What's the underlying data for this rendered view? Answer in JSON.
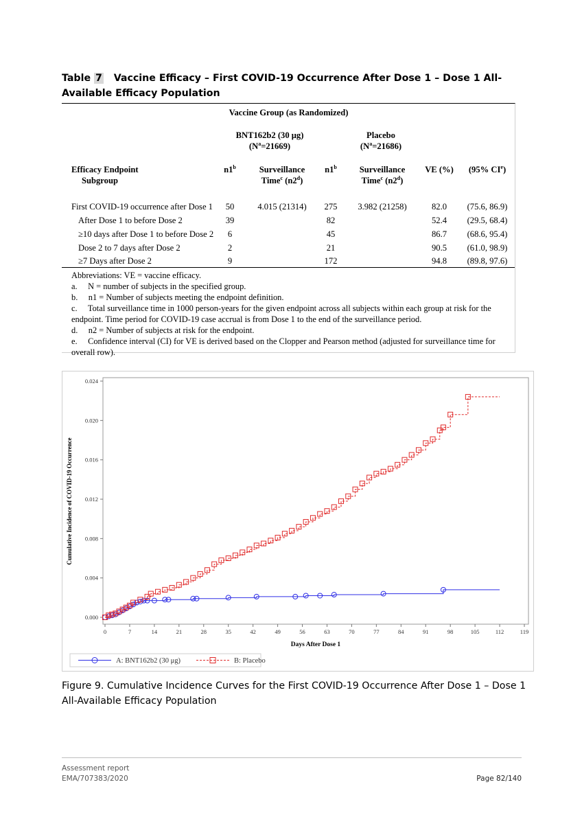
{
  "table": {
    "title_prefix": "Table ",
    "title_number": "7",
    "title_rest": "   Vaccine Efficacy – First COVID-19 Occurrence After Dose 1 – Dose 1 All- Available Efficacy Population",
    "group_header": "Vaccine Group (as Randomized)",
    "bnt_name": "BNT162b2 (30 μg)",
    "bnt_n_pre": "(N",
    "bnt_n_sup": "a",
    "bnt_n_post": "=21669)",
    "placebo_name": "Placebo",
    "placebo_n_pre": "(N",
    "placebo_n_sup": "a",
    "placebo_n_post": "=21686)",
    "col_endpoint_1": "Efficacy Endpoint",
    "col_endpoint_2": "Subgroup",
    "col_n1": "n1",
    "col_n1_sup": "b",
    "col_st_1": "Surveillance",
    "col_st_2_pre": "Time",
    "col_st_2_sup1": "c",
    "col_st_2_mid": " (n2",
    "col_st_2_sup2": "d",
    "col_st_2_post": ")",
    "col_ve": "VE (%)",
    "col_ci_pre": "(95% CI",
    "col_ci_sup": "e",
    "col_ci_post": ")",
    "rows": [
      {
        "label": "First COVID-19 occurrence after Dose 1",
        "n1_bnt": "50",
        "st_bnt": "4.015 (21314)",
        "n1_pl": "275",
        "st_pl": "3.982 (21258)",
        "ve": "82.0",
        "ci": "(75.6, 86.9)"
      },
      {
        "label": "After Dose 1 to before Dose 2",
        "n1_bnt": "39",
        "st_bnt": "",
        "n1_pl": "82",
        "st_pl": "",
        "ve": "52.4",
        "ci": "(29.5, 68.4)"
      },
      {
        "label": "≥10 days after Dose 1 to before Dose 2",
        "n1_bnt": "6",
        "st_bnt": "",
        "n1_pl": "45",
        "st_pl": "",
        "ve": "86.7",
        "ci": "(68.6, 95.4)"
      },
      {
        "label": "Dose 2 to 7 days after Dose 2",
        "n1_bnt": "2",
        "st_bnt": "",
        "n1_pl": "21",
        "st_pl": "",
        "ve": "90.5",
        "ci": "(61.0, 98.9)"
      },
      {
        "label": "≥7 Days after Dose 2",
        "n1_bnt": "9",
        "st_bnt": "",
        "n1_pl": "172",
        "st_pl": "",
        "ve": "94.8",
        "ci": "(89.8, 97.6)"
      }
    ],
    "footnotes": [
      "Abbreviations: VE = vaccine efficacy.",
      "a.     N = number of subjects in the specified group.",
      "b.     n1 = Number of subjects meeting the endpoint definition.",
      "c.     Total surveillance time in 1000 person-years for the given endpoint across all subjects within each group at risk for the endpoint. Time period for COVID-19 case accrual is from Dose 1 to the end of the surveillance period.",
      "d.     n2 = Number of subjects at risk for the endpoint.",
      "e.     Confidence interval (CI) for VE is derived based on the Clopper and Pearson method (adjusted for surveillance time for overall row)."
    ]
  },
  "chart_data": {
    "type": "line",
    "xlabel": "Days After Dose 1",
    "ylabel": "Cumulative Incidence of COVID-19 Occurrence",
    "xlim": [
      0,
      119
    ],
    "ylim": [
      0,
      0.024
    ],
    "x_ticks": [
      "0",
      "7",
      "14",
      "21",
      "28",
      "35",
      "42",
      "49",
      "56",
      "63",
      "70",
      "77",
      "84",
      "91",
      "98",
      "105",
      "112",
      "119"
    ],
    "y_ticks": [
      "0.000",
      "0.004",
      "0.008",
      "0.012",
      "0.016",
      "0.020",
      "0.024"
    ],
    "legend_position": "bottom-left",
    "series": [
      {
        "name": "A: BNT162b2 (30 μg)",
        "color": "#2e2ee6",
        "line": "solid",
        "marker": "circle",
        "points": [
          [
            0,
            0
          ],
          [
            1,
            0.0001
          ],
          [
            2,
            0.0002
          ],
          [
            3,
            0.0003
          ],
          [
            4,
            0.0005
          ],
          [
            5,
            0.0007
          ],
          [
            6,
            0.0009
          ],
          [
            7,
            0.0011
          ],
          [
            8,
            0.0013
          ],
          [
            9,
            0.0015
          ],
          [
            10,
            0.0016
          ],
          [
            11,
            0.0017
          ],
          [
            12,
            0.0017
          ],
          [
            14,
            0.0017
          ],
          [
            17,
            0.0018
          ],
          [
            18,
            0.0018
          ],
          [
            25,
            0.0019
          ],
          [
            26,
            0.0019
          ],
          [
            35,
            0.002
          ],
          [
            43,
            0.0021
          ],
          [
            54,
            0.0021
          ],
          [
            57,
            0.0022
          ],
          [
            61,
            0.0022
          ],
          [
            65,
            0.0023
          ],
          [
            79,
            0.0024
          ],
          [
            96,
            0.0028
          ],
          [
            112,
            0.0028
          ]
        ]
      },
      {
        "name": "B: Placebo",
        "color": "#e02a2a",
        "line": "dashed",
        "marker": "square",
        "points": [
          [
            0,
            0
          ],
          [
            1,
            0.0002
          ],
          [
            2,
            0.0003
          ],
          [
            3,
            0.0004
          ],
          [
            4,
            0.0006
          ],
          [
            5,
            0.0008
          ],
          [
            6,
            0.001
          ],
          [
            7,
            0.0012
          ],
          [
            8,
            0.0015
          ],
          [
            10,
            0.0018
          ],
          [
            12,
            0.0021
          ],
          [
            13,
            0.0024
          ],
          [
            15,
            0.0026
          ],
          [
            17,
            0.0028
          ],
          [
            19,
            0.003
          ],
          [
            21,
            0.0033
          ],
          [
            23,
            0.0036
          ],
          [
            25,
            0.004
          ],
          [
            27,
            0.0044
          ],
          [
            29,
            0.0048
          ],
          [
            31,
            0.0054
          ],
          [
            33,
            0.0058
          ],
          [
            35,
            0.006
          ],
          [
            37,
            0.0063
          ],
          [
            39,
            0.0066
          ],
          [
            41,
            0.0069
          ],
          [
            43,
            0.0073
          ],
          [
            45,
            0.0075
          ],
          [
            47,
            0.0078
          ],
          [
            49,
            0.0081
          ],
          [
            51,
            0.0085
          ],
          [
            53,
            0.0088
          ],
          [
            55,
            0.0092
          ],
          [
            57,
            0.0097
          ],
          [
            59,
            0.0101
          ],
          [
            61,
            0.0105
          ],
          [
            63,
            0.0108
          ],
          [
            65,
            0.0112
          ],
          [
            67,
            0.0118
          ],
          [
            69,
            0.0123
          ],
          [
            71,
            0.013
          ],
          [
            73,
            0.0136
          ],
          [
            75,
            0.0142
          ],
          [
            77,
            0.0146
          ],
          [
            79,
            0.0148
          ],
          [
            81,
            0.0151
          ],
          [
            83,
            0.0155
          ],
          [
            85,
            0.016
          ],
          [
            87,
            0.0165
          ],
          [
            89,
            0.017
          ],
          [
            91,
            0.0177
          ],
          [
            93,
            0.0181
          ],
          [
            95,
            0.019
          ],
          [
            96,
            0.0193
          ],
          [
            98,
            0.0206
          ],
          [
            103,
            0.0224
          ],
          [
            112,
            0.0224
          ]
        ]
      }
    ]
  },
  "figure_caption": "Figure 9. Cumulative Incidence Curves for the First COVID-19 Occurrence After Dose 1 – Dose 1 All-Available Efficacy Population",
  "footer": {
    "line1": "Assessment report",
    "line2": "EMA/707383/2020",
    "page": "Page 82/140"
  }
}
